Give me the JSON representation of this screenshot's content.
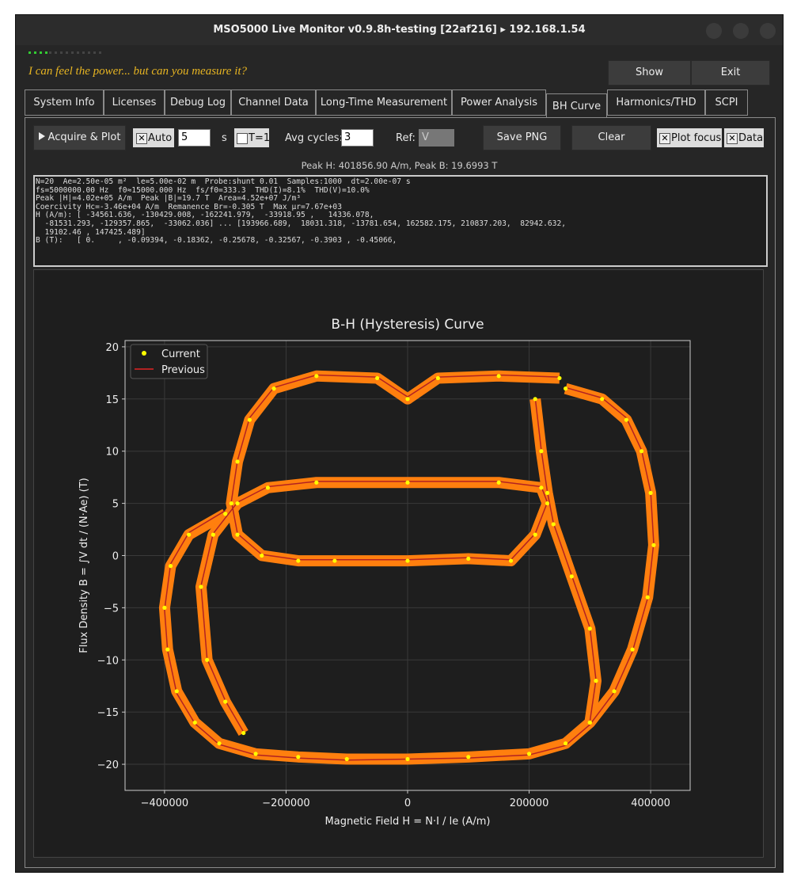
{
  "window": {
    "title": "MSO5000 Live Monitor v0.9.8h-testing [22af216] ▸ 192.168.1.54"
  },
  "tagline": "I can feel the power... but can you measure it?",
  "header_buttons": [
    "Show",
    "Exit"
  ],
  "tabs": [
    "System Info",
    "Licenses",
    "Debug Log",
    "Channel Data",
    "Long-Time Measurement",
    "Power Analysis",
    "BH Curve",
    "Harmonics/THD",
    "SCPI"
  ],
  "active_tab": 6,
  "controls": {
    "acquire": "Acquire & Plot",
    "auto": "Auto",
    "auto_value": "5",
    "auto_unit": "s",
    "t1": "T=1",
    "avg_label": "Avg cycles:",
    "avg_value": "3",
    "ref_label": "Ref:",
    "ref_value": "V",
    "save": "Save PNG",
    "clear": "Clear",
    "plot_focus": "Plot focus",
    "data": "Data"
  },
  "peak_text": "Peak H: 401856.90 A/m, Peak B: 19.6993 T",
  "log_lines": [
    "N=20  Ae=2.50e-05 m²  le=5.00e-02 m  Probe:shunt 0.01  Samples:1000  dt=2.00e-07 s",
    "fs=5000000.00 Hz  f0≈15000.000 Hz  fs/f0=333.3  THD(I)=8.1%  THD(V)=10.0%",
    "Peak |H|=4.02e+05 A/m  Peak |B|=19.7 T  Area=4.52e+07 J/m³",
    "Coercivity Hc=-3.46e+04 A/m  Remanence Br=-0.305 T  Max μr=7.67e+03",
    "H (A/m): [ -34561.636, -130429.008, -162241.979,  -33918.95 ,   14336.078,",
    "  -81531.293, -129357.865,  -33062.036] ... [193966.689,  18031.318, -13781.654, 162582.175, 210837.203,  82942.632,",
    "  19102.46 , 147425.489]",
    "B (T):   [ 0.     , -0.09394, -0.18362, -0.25678, -0.32567, -0.3903 , -0.45066,"
  ],
  "chart_data": {
    "type": "line",
    "title": "B-H (Hysteresis) Curve",
    "x_label": "Magnetic Field H = N·I / le   (A/m)",
    "y_label": "Flux Density B = ∫V dt / (N·Ae)   (T)",
    "xlim": [
      -465000,
      465000
    ],
    "ylim": [
      -22.5,
      20.6
    ],
    "xticks": [
      {
        "value": -400000,
        "label": "−400000"
      },
      {
        "value": -200000,
        "label": "−200000"
      },
      0,
      200000,
      400000
    ],
    "yticks": [
      {
        "value": -20,
        "label": "−20"
      },
      {
        "value": -15,
        "label": "−15"
      },
      {
        "value": -10,
        "label": "−10"
      },
      {
        "value": -5,
        "label": "−5"
      },
      0,
      5,
      10,
      15,
      20
    ],
    "grid": true,
    "legend": "upper left",
    "x": [
      -300000,
      -360000,
      -390000,
      -400000,
      -395000,
      -380000,
      -350000,
      -310000,
      -250000,
      -180000,
      -100000,
      0,
      100000,
      200000,
      260000,
      300000,
      340000,
      370000,
      395000,
      405000,
      400000,
      385000,
      360000,
      320000,
      260000,
      null,
      250000,
      150000,
      50000,
      0,
      -50000,
      -150000,
      -220000,
      -260000,
      -280000,
      -290000,
      -280000,
      -240000,
      -180000,
      -120000,
      0,
      100000,
      170000,
      210000,
      230000,
      220000,
      150000,
      0,
      -150000,
      -230000,
      -280000,
      -320000,
      -340000,
      -330000,
      -300000,
      -270000,
      null,
      210000,
      220000,
      230000,
      240000,
      270000,
      300000,
      310000,
      300000
    ],
    "series": [
      {
        "name": "Current",
        "color": "#ffff00",
        "line_color": "#ff7f0e",
        "marker": "o",
        "values": [
          4,
          2,
          -1,
          -5,
          -9,
          -13,
          -16,
          -18,
          -19,
          -19.3,
          -19.5,
          -19.5,
          -19.3,
          -19,
          -18,
          -16,
          -13,
          -9,
          -4,
          1,
          6,
          10,
          13,
          15,
          16,
          null,
          17,
          17.2,
          17,
          15,
          17,
          17.2,
          16,
          13,
          9,
          5,
          2,
          0,
          -0.5,
          -0.5,
          -0.5,
          -0.3,
          -0.5,
          2,
          5,
          6.5,
          7,
          7,
          7,
          6.5,
          5,
          2,
          -3,
          -10,
          -14,
          -17,
          null,
          15,
          10,
          6,
          3,
          -2,
          -7,
          -12,
          -16
        ]
      },
      {
        "name": "Previous",
        "color": "#b22222",
        "values": [
          4.3,
          2.2,
          -0.8,
          -5.2,
          -9.1,
          -13.2,
          -16.1,
          -18.1,
          -19.1,
          -19.4,
          -19.6,
          -19.5,
          -19.4,
          -19.1,
          -18.2,
          -16.2,
          -13.1,
          -9.2,
          -4.1,
          1.2,
          6.1,
          10.1,
          13.2,
          15.1,
          16.1,
          null,
          17.1,
          17.3,
          17.1,
          15.2,
          17.1,
          17.3,
          16.1,
          13.2,
          9.1,
          5.2,
          2.1,
          0.1,
          -0.4,
          -0.4,
          -0.4,
          -0.2,
          -0.4,
          2.1,
          5.1,
          6.6,
          7.1,
          7.1,
          7.1,
          6.6,
          5.1,
          2.1,
          -2.9,
          -9.9,
          -13.9,
          -16.9,
          null,
          15.1,
          10.1,
          6.1,
          3.1,
          -1.9,
          -6.9,
          -11.9,
          -15.9
        ]
      }
    ]
  }
}
